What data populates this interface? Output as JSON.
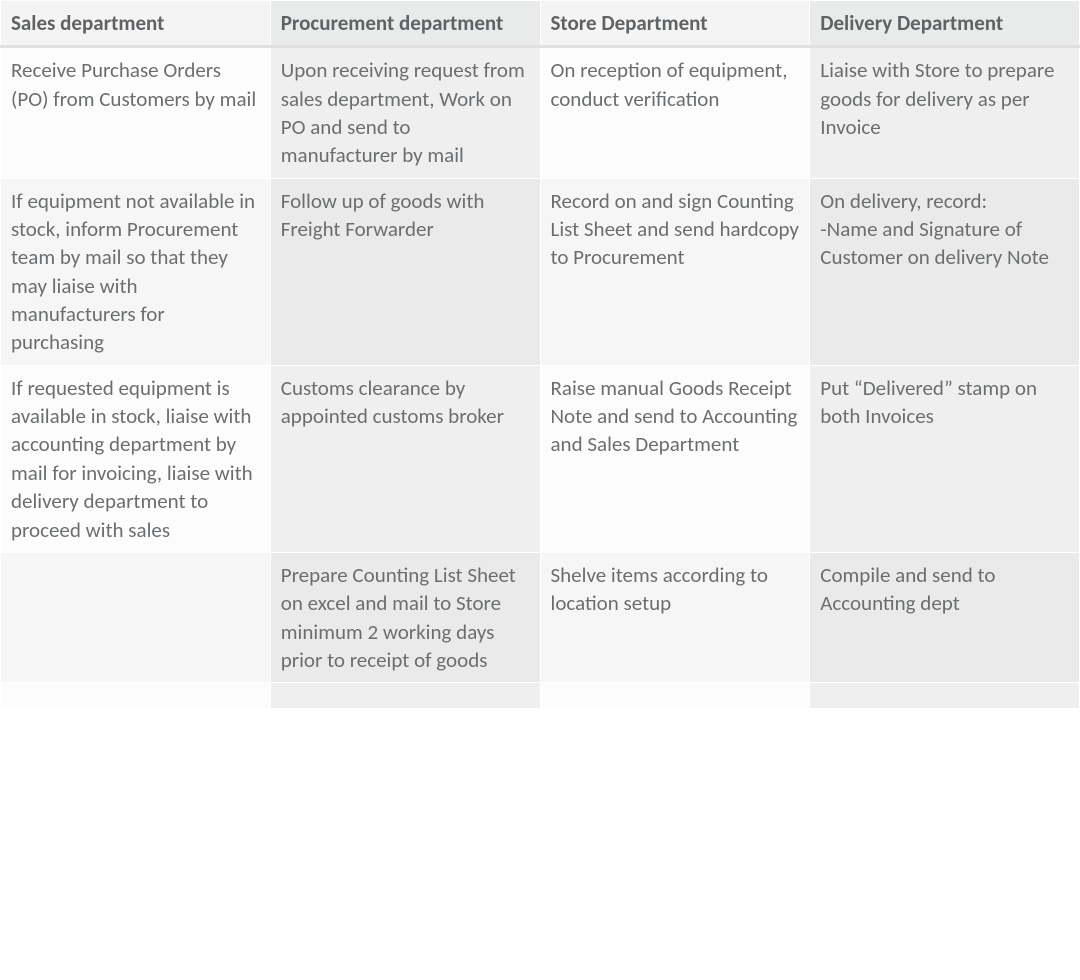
{
  "table": {
    "type": "table",
    "columns": [
      {
        "label": "Sales department",
        "width_pct": 25
      },
      {
        "label": "Procurement department",
        "width_pct": 25
      },
      {
        "label": "Store Department",
        "width_pct": 25
      },
      {
        "label": "Delivery Department",
        "width_pct": 25
      }
    ],
    "rows": [
      [
        "Receive Purchase Orders (PO) from Customers by mail",
        "Upon receiving request from sales department, Work on PO and send to manufacturer by mail",
        "On reception of equipment, conduct verification",
        "Liaise with Store to prepare goods for delivery as per Invoice"
      ],
      [
        "If equipment not available in stock, inform Procurement team by mail so that they may liaise with manufacturers for purchasing",
        "Follow up of goods with Freight Forwarder",
        "Record on and sign Counting List Sheet and send hardcopy to Procurement",
        "On delivery, record:\n-Name and Signature of Customer on delivery Note"
      ],
      [
        "If requested equipment is available in stock, liaise with accounting department by mail for invoicing, liaise with delivery department to proceed with sales",
        "Customs clearance by appointed customs broker",
        "Raise manual Goods Receipt Note and send to Accounting and Sales Department",
        "Put “Delivered” stamp on both Invoices"
      ],
      [
        "",
        "Prepare Counting List Sheet on excel and mail to Store minimum 2 working days prior to receipt of goods",
        "Shelve items according to location setup",
        "Compile and send to Accounting dept"
      ],
      [
        "",
        "",
        "",
        ""
      ]
    ],
    "styling": {
      "font_family": "Calibri",
      "cell_font_size_pt": 16,
      "text_color": "#6b6e70",
      "header_text_color": "#606366",
      "header_bg_light": "#f4f4f4",
      "header_bg_dark": "#e9eaea",
      "col_bg_odd": "#fcfcfc",
      "col_bg_even": "#efefef",
      "row_alt_odd": "#f6f6f6",
      "row_alt_even": "#eaeaea",
      "border_color": "#ffffff",
      "header_divider_color": "#e0e0e0"
    }
  }
}
